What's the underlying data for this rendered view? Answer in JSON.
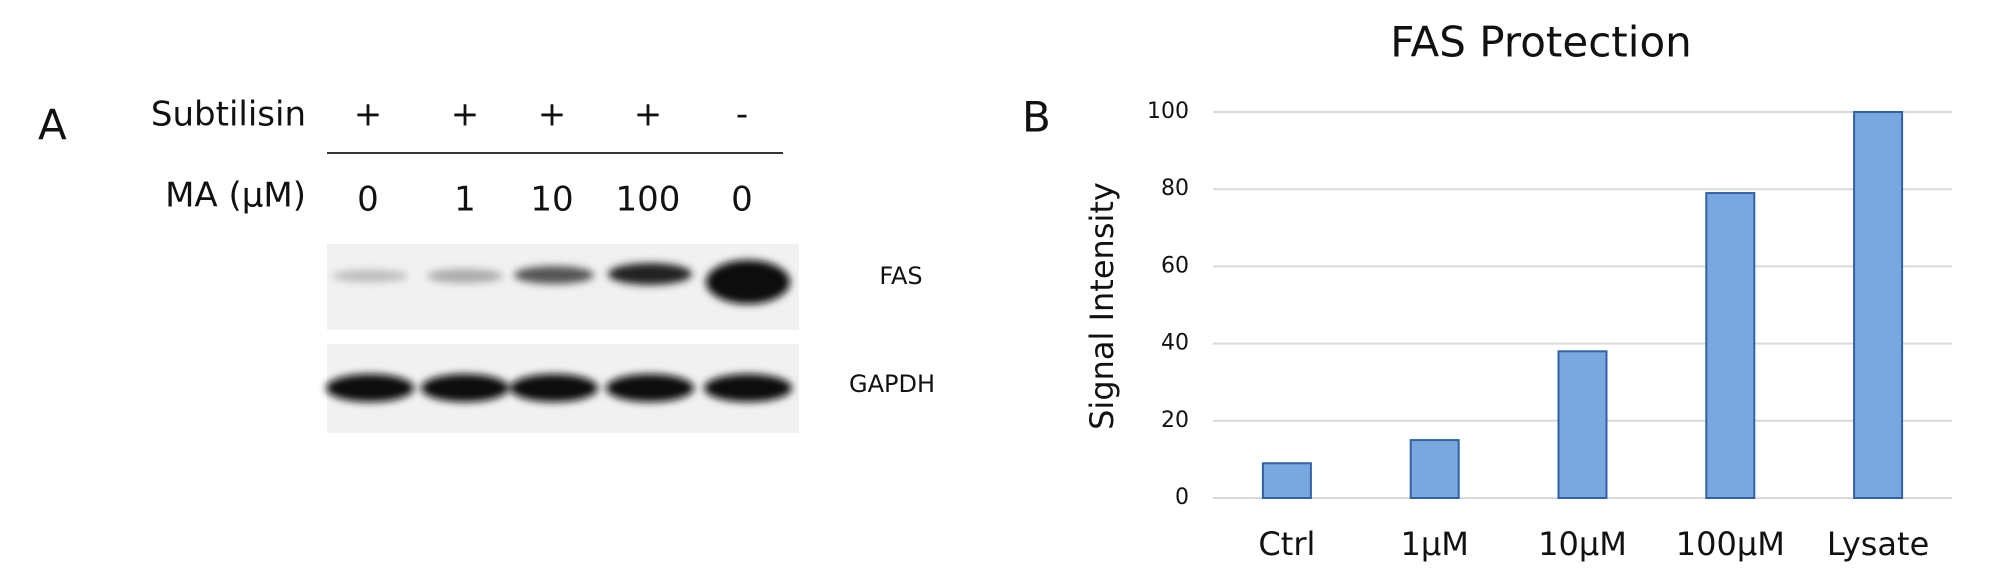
{
  "panel_a": {
    "label": "A",
    "rows": [
      {
        "name": "Subtilisin",
        "cells": [
          "+",
          "+",
          "+",
          "+",
          "-"
        ]
      },
      {
        "name": "MA (μM)",
        "cells": [
          "0",
          "1",
          "10",
          "100",
          "0"
        ]
      }
    ],
    "blots": [
      "FAS",
      "GAPDH"
    ]
  },
  "chart_data": {
    "type": "bar",
    "panel_label": "B",
    "title": "FAS Protection",
    "y_label": "Signal Intensity",
    "categories": [
      "Ctrl",
      "1μM",
      "10μM",
      "100μM",
      "Lysate"
    ],
    "values": [
      9,
      15,
      38,
      79,
      100
    ],
    "color": "#7ba7df",
    "ylim": [
      0,
      100
    ],
    "yticks": [
      0,
      20,
      40,
      60,
      80,
      100
    ],
    "grid": true
  }
}
